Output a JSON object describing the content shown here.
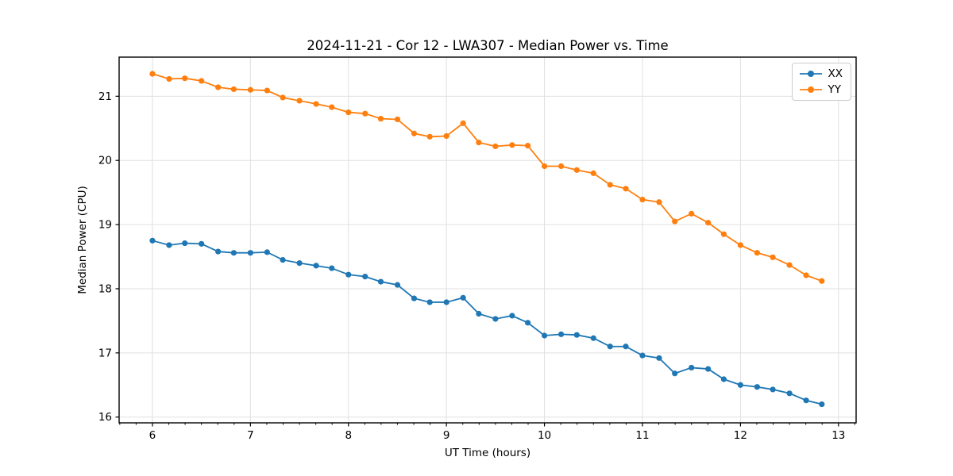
{
  "chart_data": {
    "type": "line",
    "title": "2024-11-21 - Cor 12 - LWA307 - Median Power vs. Time",
    "xlabel": "UT Time (hours)",
    "ylabel": "Median Power (CPU)",
    "xlim": [
      5.66,
      13.18
    ],
    "ylim": [
      15.91,
      21.61
    ],
    "x_ticks": [
      6,
      7,
      8,
      9,
      10,
      11,
      12,
      13
    ],
    "y_ticks": [
      16,
      17,
      18,
      19,
      20,
      21
    ],
    "grid": true,
    "legend_position": "upper right",
    "marker": "circle",
    "x": [
      6.0,
      6.17,
      6.33,
      6.5,
      6.67,
      6.83,
      7.0,
      7.17,
      7.33,
      7.5,
      7.67,
      7.83,
      8.0,
      8.17,
      8.33,
      8.5,
      8.67,
      8.83,
      9.0,
      9.17,
      9.33,
      9.5,
      9.67,
      9.83,
      10.0,
      10.17,
      10.33,
      10.5,
      10.67,
      10.83,
      11.0,
      11.17,
      11.33,
      11.5,
      11.67,
      11.83,
      12.0,
      12.17,
      12.33,
      12.5,
      12.67,
      12.83
    ],
    "series": [
      {
        "name": "XX",
        "color": "#1f77b4",
        "values": [
          18.75,
          18.68,
          18.71,
          18.7,
          18.58,
          18.56,
          18.56,
          18.57,
          18.45,
          18.4,
          18.36,
          18.32,
          18.22,
          18.19,
          18.11,
          18.06,
          17.85,
          17.79,
          17.79,
          17.86,
          17.61,
          17.53,
          17.58,
          17.47,
          17.27,
          17.29,
          17.28,
          17.23,
          17.1,
          17.1,
          16.96,
          16.92,
          16.68,
          16.77,
          16.75,
          16.59,
          16.5,
          16.47,
          16.43,
          16.37,
          16.26,
          16.2
        ]
      },
      {
        "name": "YY",
        "color": "#ff7f0e",
        "values": [
          21.35,
          21.27,
          21.28,
          21.24,
          21.14,
          21.11,
          21.1,
          21.09,
          20.98,
          20.93,
          20.88,
          20.83,
          20.75,
          20.73,
          20.65,
          20.64,
          20.42,
          20.37,
          20.38,
          20.58,
          20.28,
          20.22,
          20.24,
          20.23,
          19.91,
          19.91,
          19.85,
          19.8,
          19.62,
          19.56,
          19.39,
          19.35,
          19.05,
          19.17,
          19.03,
          18.85,
          18.68,
          18.56,
          18.49,
          18.37,
          18.21,
          18.12
        ]
      }
    ]
  }
}
